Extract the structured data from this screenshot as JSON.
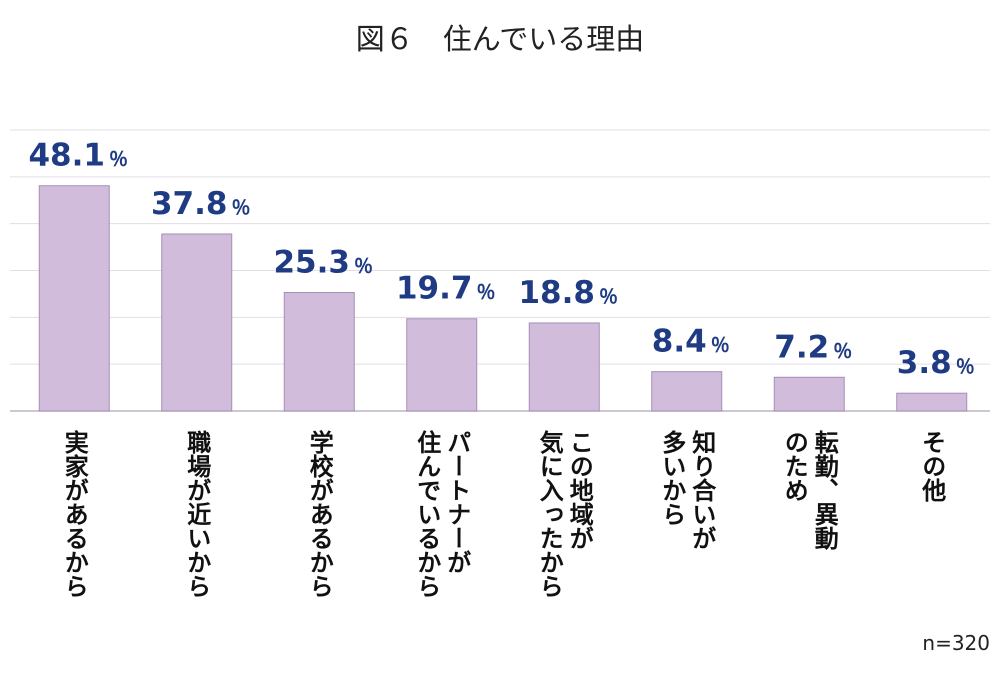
{
  "chart_data": {
    "type": "bar",
    "title": "図６　住んでいる理由",
    "categories": [
      [
        "実家があるから"
      ],
      [
        "職場が近いから"
      ],
      [
        "学校があるから"
      ],
      [
        "パートナーが",
        "住んでいるから"
      ],
      [
        "この地域が",
        "気に入ったから"
      ],
      [
        "知り合いが",
        "多いから"
      ],
      [
        "転勤、異動",
        "のため"
      ],
      [
        "その他"
      ]
    ],
    "values": [
      48.1,
      37.8,
      25.3,
      19.7,
      18.8,
      8.4,
      7.2,
      3.8
    ],
    "value_labels": [
      "48.1",
      "37.8",
      "25.3",
      "19.7",
      "18.8",
      "8.4",
      "7.2",
      "3.8"
    ],
    "unit": "％",
    "ylim": [
      0,
      60
    ],
    "grid": true,
    "note": "n=320",
    "colors": {
      "bar": "#d1bcdc",
      "bar_edge": "#a68fb3",
      "label": "#1f3b84",
      "grid": "#e2dce6",
      "axis": "#bdb3c3"
    }
  }
}
